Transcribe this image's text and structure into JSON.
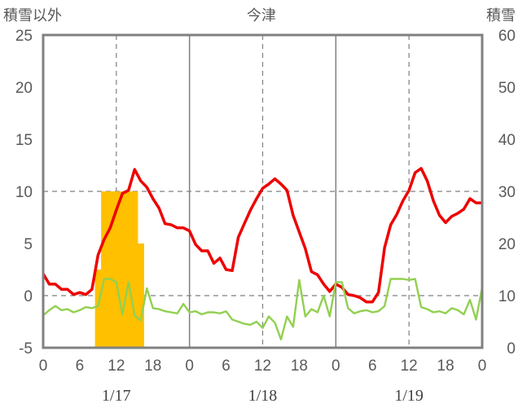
{
  "chart_data": {
    "type": "line",
    "title": "今津",
    "ylabel_left": "積雪以外",
    "ylabel_right": "積雪",
    "ylim_left": [
      -5,
      25
    ],
    "ylim_right": [
      0,
      60
    ],
    "yticks_left": [
      "-5",
      "0",
      "5",
      "10",
      "15",
      "20",
      "25"
    ],
    "yticks_right": [
      "0",
      "10",
      "20",
      "30",
      "40",
      "50",
      "60"
    ],
    "x_hours": [
      0,
      72
    ],
    "xtick_labels": [
      "0",
      "6",
      "12",
      "18",
      "0",
      "6",
      "12",
      "18",
      "0",
      "6",
      "12",
      "18",
      "0"
    ],
    "date_labels": [
      "1/17",
      "1/18",
      "1/19"
    ],
    "grid": "dashed vertical at 12h, solid at day boundaries",
    "colors": {
      "temperature": "#ee0000",
      "green_series": "#92d050",
      "snow_depth": "#ffc000",
      "purple_series": "#7030a0",
      "axes": "#808080"
    },
    "series": [
      {
        "kind": "bars",
        "axis": "right",
        "hours": [
          9,
          10,
          11,
          12,
          13,
          14,
          15,
          16,
          17,
          18,
          19,
          20,
          21,
          22,
          23,
          24,
          25,
          26,
          27,
          28,
          29,
          30,
          31,
          32,
          33,
          34,
          35,
          36,
          37,
          38,
          39,
          40,
          41,
          42,
          43,
          44,
          45,
          46,
          47,
          48,
          49,
          50,
          51,
          52,
          53,
          54,
          55,
          56,
          57,
          58,
          59,
          60,
          61,
          62,
          63,
          64,
          65,
          66,
          67,
          68,
          69,
          70,
          71
        ],
        "values": [
          15,
          30,
          30,
          30,
          30,
          30,
          30,
          20,
          0,
          0,
          0,
          0,
          0,
          0,
          0,
          0,
          0,
          0,
          0,
          0,
          0,
          0,
          0,
          0,
          0,
          0,
          0,
          0,
          0,
          0,
          0,
          0,
          0,
          0,
          0,
          0,
          0,
          0,
          0,
          0,
          0,
          0,
          0,
          0,
          0,
          0,
          0,
          0,
          0,
          0,
          0,
          0,
          0,
          0,
          0,
          0,
          0,
          0,
          0,
          0,
          0,
          0,
          0
        ]
      },
      {
        "kind": "line",
        "axis": "left",
        "hours": [
          0,
          1,
          2,
          3,
          4,
          5,
          6,
          7,
          8,
          9,
          10,
          11,
          12,
          13,
          14,
          15,
          16,
          17,
          18,
          19,
          20,
          21,
          22,
          23,
          24,
          25,
          26,
          27,
          28,
          29,
          30,
          31,
          32,
          33,
          34,
          35,
          36,
          37,
          38,
          39,
          40,
          41,
          42,
          43,
          44,
          45,
          46,
          47,
          48,
          49,
          50,
          51,
          52,
          53,
          54,
          55,
          56,
          57,
          58,
          59,
          60,
          61,
          62,
          63,
          64,
          65,
          66,
          67,
          68,
          69,
          70,
          71,
          72
        ],
        "values": [
          2.1,
          1.1,
          1.1,
          0.6,
          0.6,
          0.1,
          0.3,
          0.1,
          0.6,
          3.9,
          5.4,
          6.5,
          8.2,
          9.8,
          10.1,
          12.1,
          11.0,
          10.4,
          9.3,
          8.4,
          6.9,
          6.8,
          6.5,
          6.5,
          6.2,
          4.9,
          4.3,
          4.3,
          3.1,
          3.6,
          2.5,
          2.4,
          5.6,
          6.9,
          8.2,
          9.3,
          10.3,
          10.7,
          11.2,
          10.7,
          10.1,
          7.7,
          6.1,
          4.5,
          2.3,
          2.0,
          1.1,
          0.4,
          1.1,
          0.8,
          0.1,
          0.0,
          -0.2,
          -0.6,
          -0.6,
          0.3,
          4.6,
          6.8,
          7.8,
          9.1,
          10.1,
          11.8,
          12.2,
          11.0,
          9.1,
          7.7,
          7.0,
          7.6,
          7.9,
          8.3,
          9.3,
          8.9,
          8.9
        ]
      },
      {
        "kind": "line",
        "axis": "left",
        "hours": [
          0,
          1,
          2,
          3,
          4,
          5,
          6,
          7,
          8,
          9,
          10,
          11,
          12,
          13,
          14,
          15,
          16,
          17,
          18,
          19,
          20,
          21,
          22,
          23,
          24,
          25,
          26,
          27,
          28,
          29,
          30,
          31,
          32,
          33,
          34,
          35,
          36,
          37,
          38,
          39,
          40,
          41,
          42,
          43,
          44,
          45,
          46,
          47,
          48,
          49,
          50,
          51,
          52,
          53,
          54,
          55,
          56,
          57,
          58,
          59,
          60,
          61,
          62,
          63,
          64,
          65,
          66,
          67,
          68,
          69,
          70,
          71,
          72
        ],
        "values": [
          -1.9,
          -1.4,
          -1.0,
          -1.4,
          -1.3,
          -1.6,
          -1.4,
          -1.1,
          -1.2,
          -1.0,
          1.6,
          1.6,
          1.3,
          -1.8,
          1.3,
          -1.9,
          -2.4,
          0.7,
          -1.2,
          -1.3,
          -1.5,
          -1.6,
          -1.7,
          -0.8,
          -1.6,
          -1.5,
          -1.8,
          -1.6,
          -1.6,
          -1.7,
          -1.5,
          -2.3,
          -2.5,
          -2.7,
          -2.8,
          -2.5,
          -3.1,
          -2.0,
          -2.6,
          -4.2,
          -2.0,
          -3.0,
          1.5,
          -2.0,
          -1.3,
          -1.6,
          0.0,
          -2.0,
          1.3,
          1.3,
          -1.2,
          -1.7,
          -1.5,
          -1.4,
          -1.6,
          -1.5,
          -1.0,
          1.6,
          1.6,
          1.6,
          1.5,
          1.6,
          -1.1,
          -1.3,
          -1.6,
          -1.5,
          -1.7,
          -1.2,
          -1.4,
          -1.8,
          -0.4,
          -2.3,
          0.8
        ]
      },
      {
        "kind": "line",
        "axis": "left",
        "hours": [
          0,
          72
        ],
        "values": [
          -5,
          -5
        ]
      }
    ]
  }
}
